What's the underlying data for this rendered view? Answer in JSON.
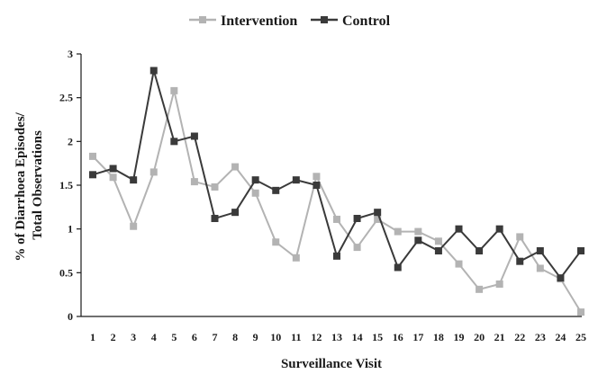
{
  "chart_data": {
    "type": "line",
    "xlabel": "Surveillance Visit",
    "ylabel_lines": [
      "% of Diarrhoea Episodes/",
      "Total Observations"
    ],
    "ylim": [
      0,
      3
    ],
    "yticks": [
      "0",
      "0.5",
      "1",
      "1.5",
      "2",
      "2.5",
      "3"
    ],
    "categories": [
      "1",
      "2",
      "3",
      "4",
      "5",
      "6",
      "7",
      "8",
      "9",
      "10",
      "11",
      "12",
      "13",
      "14",
      "15",
      "16",
      "17",
      "18",
      "19",
      "20",
      "21",
      "22",
      "23",
      "24",
      "25"
    ],
    "legend_position": "top-center",
    "grid": false,
    "series": [
      {
        "name": "Intervention",
        "color": "#b3b3b3",
        "marker": "square",
        "values": [
          1.83,
          1.59,
          1.03,
          1.65,
          2.58,
          1.54,
          1.48,
          1.71,
          1.41,
          0.85,
          0.67,
          1.6,
          1.11,
          0.79,
          1.11,
          0.97,
          0.97,
          0.86,
          0.6,
          0.31,
          0.37,
          0.91,
          0.55,
          0.43,
          0.05
        ]
      },
      {
        "name": "Control",
        "color": "#3a3a3a",
        "marker": "square",
        "values": [
          1.62,
          1.69,
          1.56,
          2.81,
          2.0,
          2.06,
          1.12,
          1.19,
          1.56,
          1.44,
          1.56,
          1.5,
          0.69,
          1.12,
          1.19,
          0.56,
          0.87,
          0.75,
          1.0,
          0.75,
          1.0,
          0.63,
          0.75,
          0.44,
          0.75
        ]
      }
    ]
  }
}
